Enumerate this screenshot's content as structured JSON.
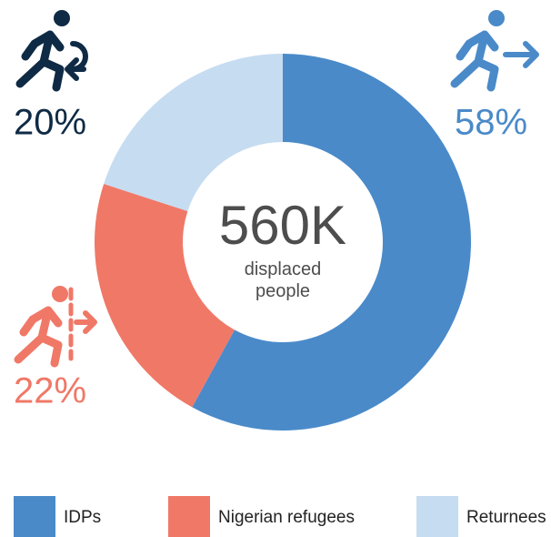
{
  "chart_data": {
    "type": "donut",
    "categories": [
      "IDPs",
      "Nigerian refugees",
      "Returnees"
    ],
    "values": [
      58,
      22,
      20
    ],
    "value_labels": [
      "58%",
      "22%",
      "20%"
    ],
    "colors": [
      "#4a8ac9",
      "#f07867",
      "#c6dcf1"
    ],
    "label_colors": [
      "#4a8ac9",
      "#f07867",
      "#0f2a45"
    ],
    "center_value": "560K",
    "center_caption": "displaced people",
    "legend": "bottom"
  }
}
